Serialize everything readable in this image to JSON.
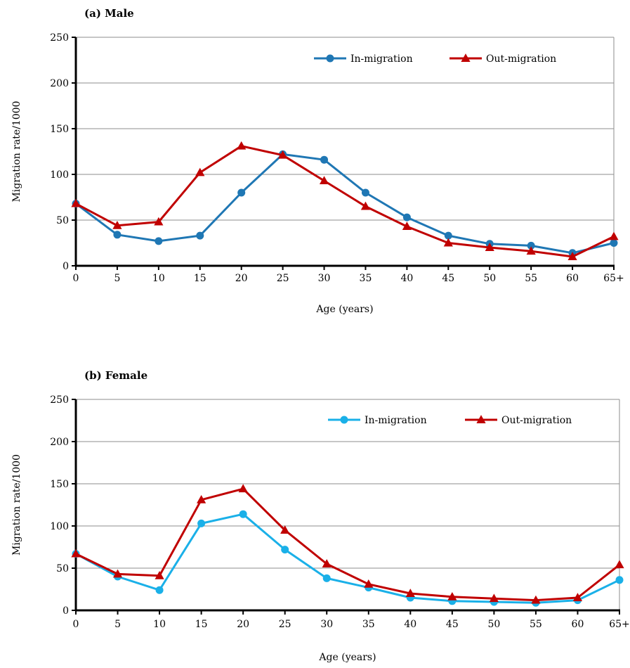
{
  "chart_data": [
    {
      "type": "line",
      "title": "(a) Male",
      "xlabel": "Age (years)",
      "ylabel": "Migration rate/1000",
      "categories": [
        "0",
        "5",
        "10",
        "15",
        "20",
        "25",
        "30",
        "35",
        "40",
        "45",
        "50",
        "55",
        "60",
        "65+"
      ],
      "ylim": [
        0,
        250
      ],
      "yticks": [
        0,
        50,
        100,
        150,
        200,
        250
      ],
      "grid": true,
      "legend_position": "top-right",
      "series": [
        {
          "name": "In-migration",
          "marker": "circle",
          "color": "#1f77b4",
          "values": [
            68,
            34,
            27,
            33,
            80,
            122,
            116,
            80,
            53,
            33,
            24,
            22,
            14,
            25
          ]
        },
        {
          "name": "Out-migration",
          "marker": "triangle",
          "color": "#c00000",
          "values": [
            68,
            44,
            48,
            102,
            131,
            121,
            93,
            65,
            43,
            25,
            20,
            16,
            10,
            32
          ]
        }
      ]
    },
    {
      "type": "line",
      "title": "(b) Female",
      "xlabel": "Age (years)",
      "ylabel": "Migration rate/1000",
      "categories": [
        "0",
        "5",
        "10",
        "15",
        "20",
        "25",
        "30",
        "35",
        "40",
        "45",
        "50",
        "55",
        "60",
        "65+"
      ],
      "ylim": [
        0,
        250
      ],
      "yticks": [
        0,
        50,
        100,
        150,
        200,
        250
      ],
      "grid": true,
      "legend_position": "top-right",
      "series": [
        {
          "name": "In-migration",
          "marker": "circle",
          "color": "#1ab0e8",
          "values": [
            67,
            40,
            24,
            103,
            114,
            72,
            38,
            27,
            15,
            11,
            10,
            9,
            12,
            36
          ]
        },
        {
          "name": "Out-migration",
          "marker": "triangle",
          "color": "#c00000",
          "values": [
            67,
            43,
            41,
            131,
            144,
            95,
            55,
            31,
            20,
            16,
            14,
            12,
            15,
            54
          ]
        }
      ]
    }
  ]
}
